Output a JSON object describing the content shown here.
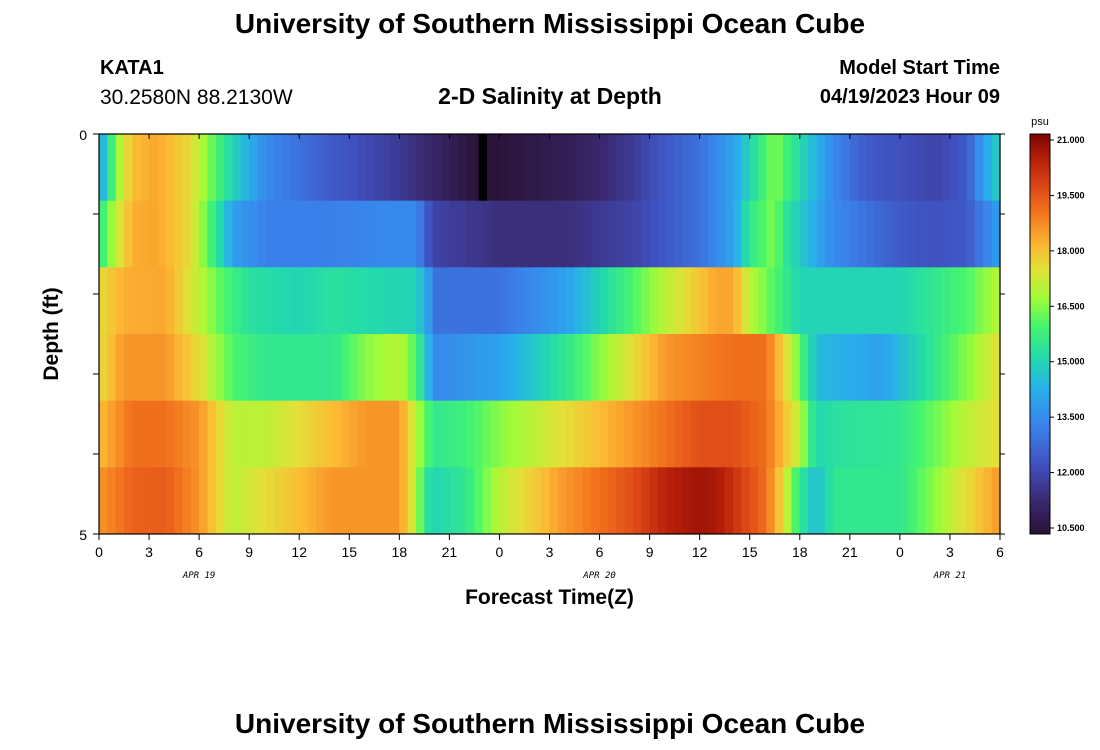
{
  "header": {
    "title": "University of Southern Mississippi Ocean Cube",
    "station_id": "KATA1",
    "coordinates": "30.2580N  88.2130W",
    "subtitle": "2-D Salinity at Depth",
    "model_start_label": "Model Start Time",
    "model_start_value": "04/19/2023 Hour 09"
  },
  "footer": {
    "title": "University of Southern Mississippi Ocean Cube"
  },
  "chart_data": {
    "type": "heatmap",
    "title": "2-D Salinity at Depth",
    "xlabel": "Forecast Time(Z)",
    "ylabel": "Depth (ft)",
    "units": "psu",
    "x_tick_labels": [
      "0",
      "3",
      "6",
      "9",
      "12",
      "15",
      "18",
      "21",
      "0",
      "3",
      "6",
      "9",
      "12",
      "15",
      "18",
      "21",
      "0",
      "3",
      "6"
    ],
    "date_labels": [
      {
        "label": "APR 19",
        "tick_index": 2
      },
      {
        "label": "APR 20",
        "tick_index": 10
      },
      {
        "label": "APR 21",
        "tick_index": 17
      }
    ],
    "y_range": [
      0,
      5
    ],
    "y_tick_labels": [
      "0",
      "5"
    ],
    "colorbar": {
      "min": 10.5,
      "max": 21.0,
      "tick_labels": [
        "21.000",
        "19.500",
        "18.000",
        "16.500",
        "15.000",
        "13.500",
        "12.000",
        "10.500"
      ]
    },
    "hours_range": [
      0,
      54
    ],
    "salinity_keyframes": [
      {
        "depth_layer": 1,
        "hours": [
          0,
          0.5,
          1,
          2,
          3.5,
          5.5,
          7,
          8,
          10,
          14,
          18,
          19,
          21,
          22.5,
          23.5,
          24,
          26,
          28,
          30,
          32,
          34,
          36,
          38,
          39.5,
          40.5,
          41,
          44,
          46,
          48,
          50,
          52,
          53,
          54
        ],
        "values": [
          14,
          15,
          16.5,
          18,
          18.3,
          17.5,
          16,
          15,
          13.5,
          12.5,
          11.8,
          11.5,
          11,
          10.6,
          10.5,
          10.6,
          10.8,
          11,
          11.3,
          11.8,
          12.5,
          13,
          14,
          15.5,
          16.5,
          16,
          13.5,
          12.5,
          12.3,
          12,
          12.5,
          14,
          15
        ]
      },
      {
        "depth_layer": 2,
        "hours": [
          0,
          1,
          2,
          3.5,
          5.5,
          7,
          8,
          10,
          14,
          17,
          19,
          20,
          24,
          28,
          32,
          36,
          38,
          39,
          40.5,
          41,
          44,
          48,
          50,
          52,
          54
        ],
        "values": [
          15.5,
          17,
          18.2,
          18.3,
          17.5,
          15.5,
          14,
          13.3,
          13.3,
          13.5,
          13.5,
          12,
          11.5,
          11.5,
          12,
          13,
          14,
          15.5,
          16.5,
          15.5,
          13.5,
          12.5,
          12.3,
          12.5,
          14
        ]
      },
      {
        "depth_layer": 3,
        "hours": [
          0,
          1.5,
          4,
          6,
          7.5,
          9,
          12,
          14,
          18,
          19,
          19.7,
          20,
          24,
          28,
          30,
          32,
          34,
          37,
          38,
          39,
          40.5,
          42,
          45,
          48,
          50,
          52,
          54
        ],
        "values": [
          17.5,
          18.2,
          18.3,
          17,
          16,
          15.3,
          15,
          15.3,
          15,
          15,
          14,
          13,
          13,
          14,
          15,
          16,
          17,
          18.3,
          18.3,
          17,
          16,
          15,
          15,
          15,
          15.5,
          16,
          17
        ]
      },
      {
        "depth_layer": 4,
        "hours": [
          0,
          1.5,
          4,
          6,
          8,
          10,
          14,
          16,
          18,
          19,
          19.7,
          20,
          24,
          28,
          30,
          32,
          34,
          38,
          40,
          41.5,
          43,
          47,
          50,
          52,
          54
        ],
        "values": [
          17.5,
          18.5,
          18.5,
          17.5,
          16,
          15.5,
          15.5,
          16.5,
          17,
          16,
          14.5,
          13.5,
          14,
          15.5,
          16.5,
          17.5,
          18.5,
          19,
          19,
          17,
          14.5,
          14,
          15.5,
          16.5,
          17.5
        ]
      },
      {
        "depth_layer": 5,
        "hours": [
          0,
          2,
          4,
          6,
          8,
          10,
          14,
          16,
          18,
          19,
          19.7,
          20,
          22,
          24,
          28,
          32,
          34,
          36,
          38,
          40,
          42,
          43,
          44,
          48,
          52,
          54
        ],
        "values": [
          18,
          19,
          19,
          18.5,
          17,
          17,
          18,
          18.5,
          18.5,
          17,
          16,
          15.5,
          15.8,
          16.5,
          17.5,
          18.5,
          19,
          19.5,
          19.5,
          19,
          17,
          15,
          15.3,
          15.5,
          17,
          17.5
        ]
      },
      {
        "depth_layer": 6,
        "hours": [
          0,
          2,
          4,
          6,
          8,
          10,
          14,
          17,
          18,
          19,
          19.5,
          20,
          22,
          24,
          28,
          32,
          34,
          36,
          37,
          38,
          40,
          41,
          42,
          43,
          44,
          48,
          52,
          54
        ],
        "values": [
          18.5,
          19.2,
          19.3,
          18.5,
          17,
          17.5,
          18.5,
          18.5,
          18.5,
          17,
          15.5,
          15,
          15.5,
          17,
          18.5,
          19.5,
          20.3,
          20.6,
          20.5,
          20,
          19,
          17.5,
          15.5,
          14.5,
          15.5,
          15.5,
          17.5,
          18.5
        ]
      }
    ],
    "missing_cell": {
      "hours_start": 22.75,
      "hours_end": 23.25,
      "depth_layer": 1
    }
  }
}
